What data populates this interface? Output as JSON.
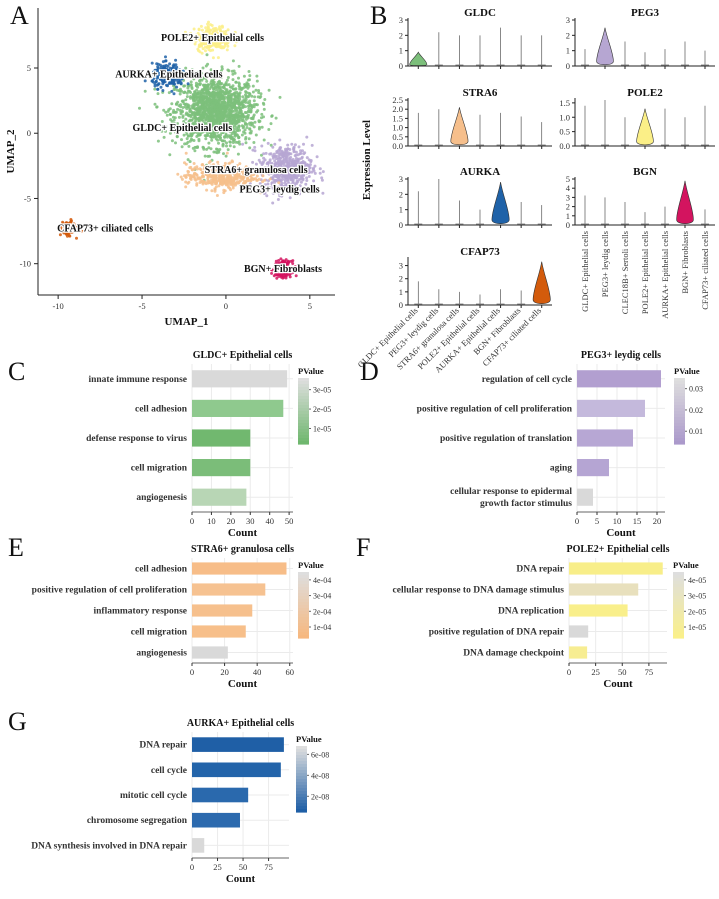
{
  "panel_letters": [
    "A",
    "B",
    "C",
    "D",
    "E",
    "F",
    "G"
  ],
  "colors": {
    "GLDC": "#7cbf7b",
    "PEG3": "#b6a6d2",
    "STRA6": "#f6bf8c",
    "POLE2": "#fbef87",
    "AURKA": "#1f62a8",
    "BGN": "#d3145f",
    "CFAP73": "#d35b0c",
    "grey": "#d9d9d9"
  },
  "chart_data": [
    {
      "id": "A",
      "type": "scatter",
      "xlabel": "UMAP_1",
      "ylabel": "UMAP_2",
      "xlim": [
        -11.2,
        6.5
      ],
      "ylim": [
        -12.4,
        9.6
      ],
      "xticks": [
        -10,
        -5,
        0,
        5
      ],
      "yticks": [
        5,
        0,
        -5,
        -10
      ],
      "clusters": [
        {
          "name": "GLDC+ Epithelial cells",
          "label": "GLDC+ Epithelial cells",
          "color": "#7cbf7b",
          "center": [
            -0.6,
            1.7
          ],
          "spread": [
            2.2,
            2.4
          ],
          "n": 1500,
          "label_at": [
            -2.6,
            0.4
          ]
        },
        {
          "name": "PEG3+ leydig cells",
          "label": "PEG3+ leydig cells",
          "color": "#b6a6d2",
          "center": [
            3.6,
            -2.7
          ],
          "spread": [
            1.4,
            1.6
          ],
          "n": 520,
          "label_at": [
            3.2,
            -4.3
          ]
        },
        {
          "name": "STRA6+ granulosa cells",
          "label": "STRA6+ granulosa cells",
          "color": "#f6bf8c",
          "center": [
            -0.3,
            -3.3
          ],
          "spread": [
            1.9,
            0.9
          ],
          "n": 420,
          "label_at": [
            1.8,
            -2.8
          ]
        },
        {
          "name": "POLE2+ Epithelial cells",
          "label": "POLE2+ Epithelial cells",
          "color": "#fbef87",
          "center": [
            -0.8,
            7.3
          ],
          "spread": [
            1.0,
            0.9
          ],
          "n": 240,
          "label_at": [
            -0.8,
            7.3
          ]
        },
        {
          "name": "AURKA+ Epithelial cells",
          "label": "AURKA+ Epithelial cells",
          "color": "#1f62a8",
          "center": [
            -3.4,
            4.4
          ],
          "spread": [
            0.9,
            0.8
          ],
          "n": 230,
          "label_at": [
            -3.4,
            4.5
          ]
        },
        {
          "name": "BGN+ Fibroblasts",
          "label": "BGN+ Fibroblasts",
          "color": "#d3145f",
          "center": [
            3.4,
            -10.4
          ],
          "spread": [
            0.45,
            0.55
          ],
          "n": 220,
          "label_at": [
            3.4,
            -10.4
          ]
        },
        {
          "name": "CFAP73+ ciliated cells",
          "label": "CFAP73+ ciliated cells",
          "color": "#d35b0c",
          "center": [
            -9.4,
            -7.3
          ],
          "spread": [
            0.35,
            0.45
          ],
          "n": 170,
          "label_at": [
            -7.2,
            -7.3
          ]
        }
      ]
    },
    {
      "id": "B",
      "type": "violin",
      "ylabel": "Expression Level",
      "left_categories": [
        "GLDC+ Epithelial cells",
        "PEG3+ leydig cells",
        "STRA6+ granulosa cells",
        "POLE2+ Epithelial cells",
        "AURKA+ Epithelial cells",
        "BGN+ Fibroblasts",
        "CFAP73+ ciliated cells"
      ],
      "right_categories": [
        "GLDC+ Epithelial cells",
        "PEG3+ leydig cells",
        "CLEC18B+ Sertoli cells",
        "POLE2+ Epithelial cells",
        "AURKA+ Epithelial cells",
        "BGN+ Fibroblasts",
        "CFAP73+ ciliated cells"
      ],
      "genes": [
        {
          "gene": "GLDC",
          "column": "left",
          "ymax": 3.0,
          "yticks": [
            "0",
            "1",
            "2",
            "3"
          ],
          "tickvals": [
            0,
            1,
            2,
            3
          ],
          "highlight": 0,
          "color": "#7cbf7b",
          "peak": 0.9,
          "maxes": [
            3.0,
            2.2,
            2.0,
            2.0,
            2.5,
            2.0,
            2.0
          ]
        },
        {
          "gene": "PEG3",
          "column": "right",
          "ymax": 3.0,
          "yticks": [
            "0",
            "1",
            "2",
            "3"
          ],
          "tickvals": [
            0,
            1,
            2,
            3
          ],
          "highlight": 1,
          "color": "#b6a6d2",
          "peak": 2.5,
          "maxes": [
            1.1,
            2.8,
            1.6,
            0.9,
            1.1,
            1.6,
            1.0
          ]
        },
        {
          "gene": "STRA6",
          "column": "left",
          "ymax": 2.5,
          "yticks": [
            "0.0",
            "0.5",
            "1.0",
            "1.5",
            "2.0",
            "2.5"
          ],
          "tickvals": [
            0,
            0.5,
            1,
            1.5,
            2,
            2.5
          ],
          "highlight": 2,
          "color": "#f6bf8c",
          "peak": 2.1,
          "maxes": [
            1.8,
            2.0,
            2.2,
            1.7,
            1.8,
            1.6,
            1.3
          ]
        },
        {
          "gene": "POLE2",
          "column": "right",
          "ymax": 1.6,
          "yticks": [
            "0.0",
            "0.5",
            "1.0",
            "1.5"
          ],
          "tickvals": [
            0,
            0.5,
            1,
            1.5
          ],
          "highlight": 3,
          "color": "#fbef87",
          "peak": 1.3,
          "maxes": [
            1.4,
            1.6,
            1.0,
            1.3,
            1.3,
            1.0,
            1.4
          ]
        },
        {
          "gene": "AURKA",
          "column": "left",
          "ymax": 3.0,
          "yticks": [
            "0",
            "1",
            "2",
            "3"
          ],
          "tickvals": [
            0,
            1,
            2,
            3
          ],
          "highlight": 4,
          "color": "#1f62a8",
          "peak": 2.8,
          "maxes": [
            2.2,
            3.0,
            1.6,
            1.0,
            2.8,
            1.5,
            1.3
          ]
        },
        {
          "gene": "BGN",
          "column": "right",
          "ymax": 5.0,
          "yticks": [
            "0",
            "1",
            "2",
            "3",
            "4",
            "5"
          ],
          "tickvals": [
            0,
            1,
            2,
            3,
            4,
            5
          ],
          "highlight": 5,
          "color": "#d3145f",
          "peak": 4.8,
          "maxes": [
            3.2,
            3.0,
            2.5,
            1.4,
            2.0,
            4.8,
            1.7
          ]
        },
        {
          "gene": "CFAP73",
          "column": "left",
          "ymax": 3.5,
          "yticks": [
            "0",
            "1",
            "2",
            "3"
          ],
          "tickvals": [
            0,
            1,
            2,
            3
          ],
          "highlight": 6,
          "color": "#d35b0c",
          "peak": 3.3,
          "maxes": [
            1.8,
            1.2,
            1.0,
            0.8,
            1.2,
            1.1,
            3.3
          ]
        }
      ]
    },
    {
      "id": "C",
      "type": "bar",
      "title": "GLDC+ Epithelial cells",
      "xlabel": "Count",
      "legend_title": "PValue",
      "categories": [
        "innate immune response",
        "cell adhesion",
        "defense response to virus",
        "cell migration",
        "angiogenesis"
      ],
      "values": [
        49,
        47,
        30,
        30,
        28
      ],
      "bar_colors": [
        "#d9d9d9",
        "#8fc98e",
        "#71b86f",
        "#7bbd79",
        "#b8d6b5"
      ],
      "xlim": [
        0,
        52
      ],
      "xticks": [
        0,
        10,
        20,
        30,
        40,
        50
      ],
      "legend_labels": [
        "3e-05",
        "2e-05",
        "1e-05"
      ],
      "legend_values": [
        3e-05,
        2e-05,
        1e-05
      ],
      "legend_range": [
        2e-06,
        3.6e-05
      ],
      "legend_low": "#6fb76e",
      "legend_high": "#dedede"
    },
    {
      "id": "D",
      "type": "bar",
      "title": "PEG3+ leydig cells",
      "xlabel": "Count",
      "legend_title": "PValue",
      "categories": [
        "regulation of cell cycle",
        "positive regulation of cell proliferation",
        "positive regulation of translation",
        "aging",
        "cellular response to epidermal growth factor stimulus"
      ],
      "values": [
        21,
        17,
        14,
        8,
        4
      ],
      "bar_colors": [
        "#b29fd0",
        "#c4b9dc",
        "#b7a7d4",
        "#b5a5d3",
        "#d9d9d9"
      ],
      "xlim": [
        0,
        22
      ],
      "xticks": [
        0,
        5,
        10,
        15,
        20
      ],
      "legend_labels": [
        "0.03",
        "0.02",
        "0.01"
      ],
      "legend_values": [
        0.03,
        0.02,
        0.01
      ],
      "legend_range": [
        0.004,
        0.035
      ],
      "legend_low": "#ab99cb",
      "legend_high": "#dedede"
    },
    {
      "id": "E",
      "type": "bar",
      "title": "STRA6+ granulosa cells",
      "xlabel": "Count",
      "legend_title": "PValue",
      "categories": [
        "cell adhesion",
        "positive regulation of cell proliferation",
        "inflammatory response",
        "cell migration",
        "angiogenesis"
      ],
      "values": [
        58,
        45,
        37,
        33,
        22
      ],
      "bar_colors": [
        "#f7bd88",
        "#f6c291",
        "#f6c08d",
        "#f7bf8a",
        "#d9d9d9"
      ],
      "xlim": [
        0,
        62
      ],
      "xticks": [
        0,
        20,
        40,
        60
      ],
      "legend_labels": [
        "4e-04",
        "3e-04",
        "2e-04",
        "1e-04"
      ],
      "legend_values": [
        0.0004,
        0.0003,
        0.0002,
        0.0001
      ],
      "legend_range": [
        3e-05,
        0.00045
      ],
      "legend_low": "#f6b880",
      "legend_high": "#dedede"
    },
    {
      "id": "F",
      "type": "bar",
      "title": "POLE2+ Epithelial cells",
      "xlabel": "Count",
      "legend_title": "PValue",
      "categories": [
        "DNA repair",
        "cellular response to DNA damage stimulus",
        "DNA replication",
        "positive regulation of DNA repair",
        "DNA damage checkpoint"
      ],
      "values": [
        88,
        65,
        55,
        18,
        17
      ],
      "bar_colors": [
        "#f8ee89",
        "#e8e0bd",
        "#f9ef8b",
        "#d9d9d9",
        "#f7ed92"
      ],
      "xlim": [
        0,
        92
      ],
      "xticks": [
        0,
        25,
        50,
        75
      ],
      "legend_labels": [
        "4e-05",
        "3e-05",
        "2e-05",
        "1e-05"
      ],
      "legend_values": [
        4e-05,
        3e-05,
        2e-05,
        1e-05
      ],
      "legend_range": [
        3e-06,
        4.5e-05
      ],
      "legend_low": "#faf08a",
      "legend_high": "#dedede"
    },
    {
      "id": "G",
      "type": "bar",
      "title": "AURKA+ Epithelial cells",
      "xlabel": "Count",
      "legend_title": "PValue",
      "categories": [
        "DNA repair",
        "cell cycle",
        "mitotic cell cycle",
        "chromosome segregation",
        "DNA synthesis involved in DNA repair"
      ],
      "values": [
        90,
        87,
        55,
        47,
        12
      ],
      "bar_colors": [
        "#1f5fa6",
        "#2364aa",
        "#2a69ad",
        "#2c6aae",
        "#d9d9d9"
      ],
      "xlim": [
        0,
        95
      ],
      "xticks": [
        0,
        25,
        50,
        75
      ],
      "legend_labels": [
        "6e-08",
        "4e-08",
        "2e-08"
      ],
      "legend_values": [
        6e-08,
        4e-08,
        2e-08
      ],
      "legend_range": [
        5e-09,
        6.8e-08
      ],
      "legend_low": "#1f5fa6",
      "legend_high": "#dedede"
    }
  ]
}
